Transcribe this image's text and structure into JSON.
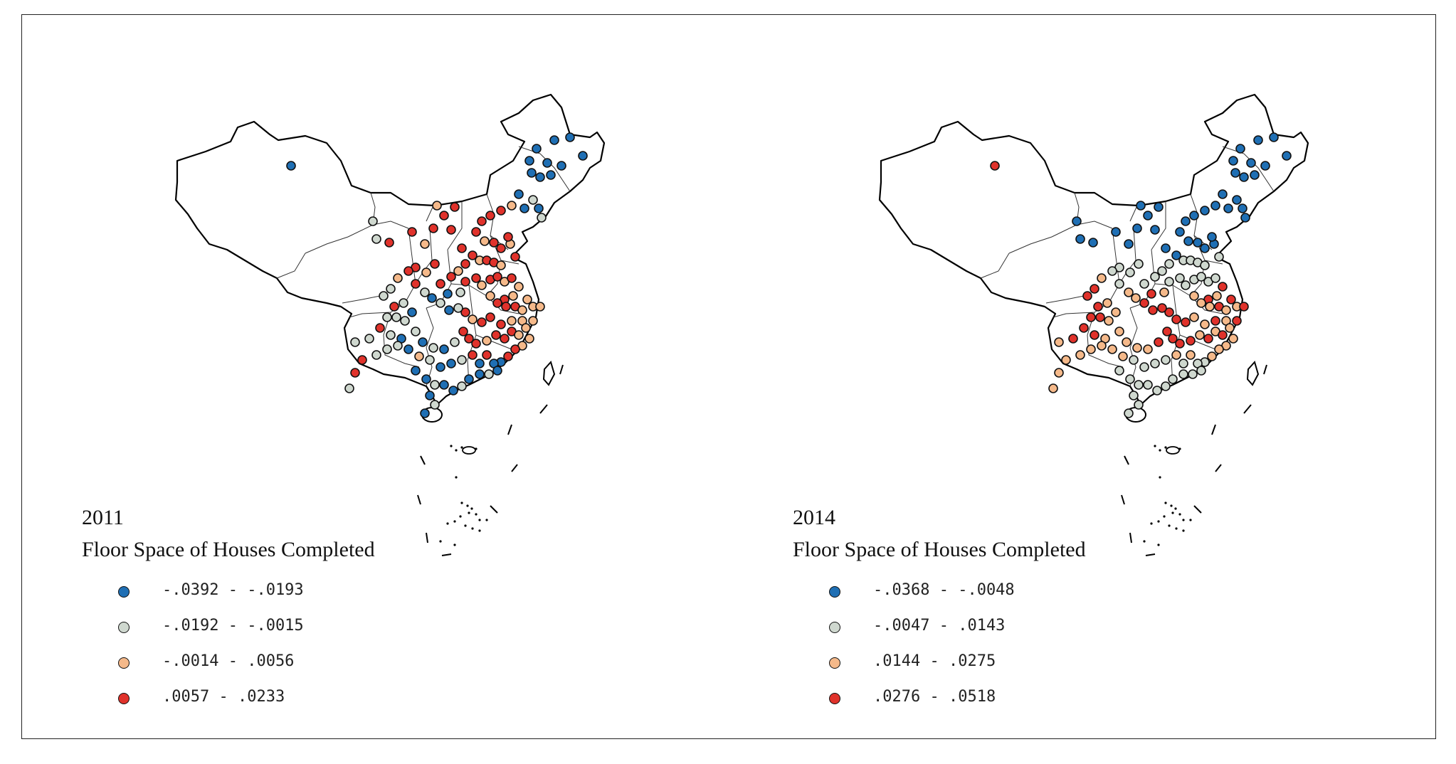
{
  "class_colors": [
    "#1f6fb4",
    "#cfd8cf",
    "#f5b98a",
    "#e0322b"
  ],
  "outline_color": "#111111",
  "panels": [
    {
      "year": "2011",
      "title": "Floor Space of Houses Completed",
      "legend": [
        {
          "label": "-.0392 - -.0193",
          "color": "#1f6fb4"
        },
        {
          "label": "-.0192 - -.0015",
          "color": "#cfd8cf"
        },
        {
          "label": "-.0014 - .0056",
          "color": "#f5b98a"
        },
        {
          "label": ".0057 - .0233",
          "color": "#e0322b"
        }
      ]
    },
    {
      "year": "2014",
      "title": "Floor Space of Houses Completed",
      "legend": [
        {
          "label": "-.0368 - -.0048",
          "color": "#1f6fb4"
        },
        {
          "label": "-.0047 - .0143",
          "color": "#cfd8cf"
        },
        {
          "label": ".0144 - .0275",
          "color": "#f5b98a"
        },
        {
          "label": ".0276 - .0518",
          "color": "#e0322b"
        }
      ]
    }
  ]
}
